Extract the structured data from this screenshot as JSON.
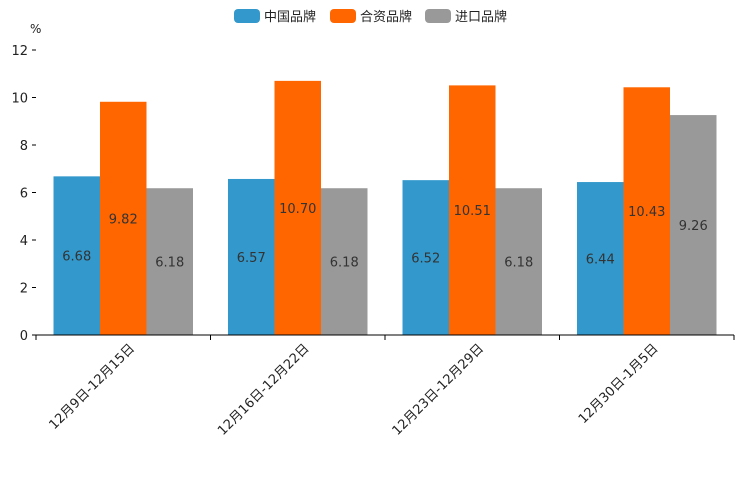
{
  "chart_data": {
    "type": "bar",
    "title": "",
    "xlabel": "",
    "ylabel": "%",
    "ylim": [
      0,
      12
    ],
    "yticks": [
      0,
      2,
      4,
      6,
      8,
      10,
      12
    ],
    "categories": [
      "12月9日-12月15日",
      "12月16日-12月22日",
      "12月23日-12月29日",
      "12月30日-1月5日"
    ],
    "series": [
      {
        "name": "中国品牌",
        "color": "#3399cc",
        "values": [
          6.68,
          6.57,
          6.52,
          6.44
        ],
        "labels": [
          "6.68",
          "6.57",
          "6.52",
          "6.44"
        ]
      },
      {
        "name": "合资品牌",
        "color": "#ff6600",
        "values": [
          9.82,
          10.7,
          10.51,
          10.43
        ],
        "labels": [
          "9.82",
          "10.70",
          "10.51",
          "10.43"
        ]
      },
      {
        "name": "进口品牌",
        "color": "#999999",
        "values": [
          6.18,
          6.18,
          6.18,
          9.26
        ],
        "labels": [
          "6.18",
          "6.18",
          "6.18",
          "9.26"
        ]
      }
    ],
    "legend_position": "top-center",
    "grid": false
  }
}
